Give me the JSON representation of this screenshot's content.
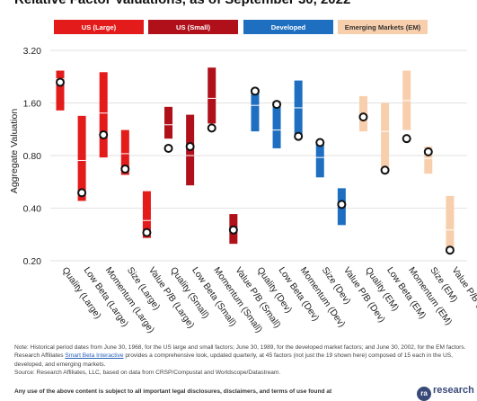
{
  "title": "Relative Factor Valuations, as of September 30, 2022",
  "legend": [
    {
      "label": "US (Large)",
      "bg": "#e31b1b",
      "fg": "#ffffff"
    },
    {
      "label": "US (Small)",
      "bg": "#b0101a",
      "fg": "#ffffff"
    },
    {
      "label": "Developed",
      "bg": "#1f6fc1",
      "fg": "#ffffff"
    },
    {
      "label": "Emerging Markets (EM)",
      "bg": "#f8cfad",
      "fg": "#333333"
    }
  ],
  "chart_data": {
    "type": "range",
    "ylabel": "Aggregate Valuation",
    "yscale": "log",
    "ylim": [
      0.2,
      3.2
    ],
    "yticks": [
      "3.20",
      "1.60",
      "0.80",
      "0.40",
      "0.20"
    ],
    "yticks_values": [
      3.2,
      1.6,
      0.8,
      0.4,
      0.2
    ],
    "categories": [
      {
        "label": "Quality (Large)",
        "group": 0,
        "low": 1.45,
        "high": 2.45,
        "median": 2.2,
        "current": 2.1
      },
      {
        "label": "Low Beta (Large)",
        "group": 0,
        "low": 0.44,
        "high": 1.35,
        "median": 0.75,
        "current": 0.49
      },
      {
        "label": "Momentum (Large)",
        "group": 0,
        "low": 0.78,
        "high": 2.4,
        "median": 1.4,
        "current": 1.05
      },
      {
        "label": "Size (Large)",
        "group": 0,
        "low": 0.62,
        "high": 1.12,
        "median": 0.82,
        "current": 0.67
      },
      {
        "label": "Value P/B (Large)",
        "group": 0,
        "low": 0.27,
        "high": 0.5,
        "median": 0.34,
        "current": 0.29
      },
      {
        "label": "Quality (Small)",
        "group": 1,
        "low": 1.0,
        "high": 1.52,
        "median": 1.2,
        "current": 0.88
      },
      {
        "label": "Low Beta (Small)",
        "group": 1,
        "low": 0.54,
        "high": 1.37,
        "median": 0.8,
        "current": 0.9
      },
      {
        "label": "Momentum (Small)",
        "group": 1,
        "low": 1.22,
        "high": 2.55,
        "median": 1.7,
        "current": 1.15
      },
      {
        "label": "Value P/B (Small)",
        "group": 1,
        "low": 0.25,
        "high": 0.37,
        "median": 0.3,
        "current": 0.3
      },
      {
        "label": "Quality (Dev)",
        "group": 2,
        "low": 1.1,
        "high": 1.9,
        "median": 1.55,
        "current": 1.87
      },
      {
        "label": "Low Beta (Dev)",
        "group": 2,
        "low": 0.88,
        "high": 1.63,
        "median": 1.12,
        "current": 1.57
      },
      {
        "label": "Momentum (Dev)",
        "group": 2,
        "low": 1.02,
        "high": 2.15,
        "median": 1.5,
        "current": 1.03
      },
      {
        "label": "Size (Dev)",
        "group": 2,
        "low": 0.6,
        "high": 0.96,
        "median": 0.78,
        "current": 0.95
      },
      {
        "label": "Value P/B (Dev)",
        "group": 2,
        "low": 0.32,
        "high": 0.52,
        "median": 0.42,
        "current": 0.42
      },
      {
        "label": "Quality (EM)",
        "group": 3,
        "low": 1.1,
        "high": 1.75,
        "median": 1.35,
        "current": 1.33
      },
      {
        "label": "Low Beta (EM)",
        "group": 3,
        "low": 0.63,
        "high": 1.6,
        "median": 1.1,
        "current": 0.66
      },
      {
        "label": "Momentum (EM)",
        "group": 3,
        "low": 1.12,
        "high": 2.45,
        "median": 1.65,
        "current": 1.0
      },
      {
        "label": "Size (EM)",
        "group": 3,
        "low": 0.63,
        "high": 0.9,
        "median": 0.77,
        "current": 0.84
      },
      {
        "label": "Value P/B (EM)",
        "group": 3,
        "low": 0.22,
        "high": 0.47,
        "median": 0.3,
        "current": 0.23
      }
    ]
  },
  "notes": {
    "line1": "Note: Historical period dates from June 30, 1968, for the US large and small factors; June 30, 1989, for the developed market factors; and June 30, 2002, for the EM factors. Research Affiliates ",
    "link": "Smart Beta Interactive",
    "line1b": " provides a comprehensive look, updated quarterly, at 45 factors (not just the 19 shown here) composed of 15 each in the US, developed, and emerging markets.",
    "source": "Source: Research Affiliates, LLC, based on data from CRSP/Compustat and Worldscope/Datastream.",
    "disclaimer": "Any use of the above content is subject to all important legal disclosures, disclaimers, and terms of use found at",
    "logo_mark": "ra",
    "logo_word": "research"
  }
}
